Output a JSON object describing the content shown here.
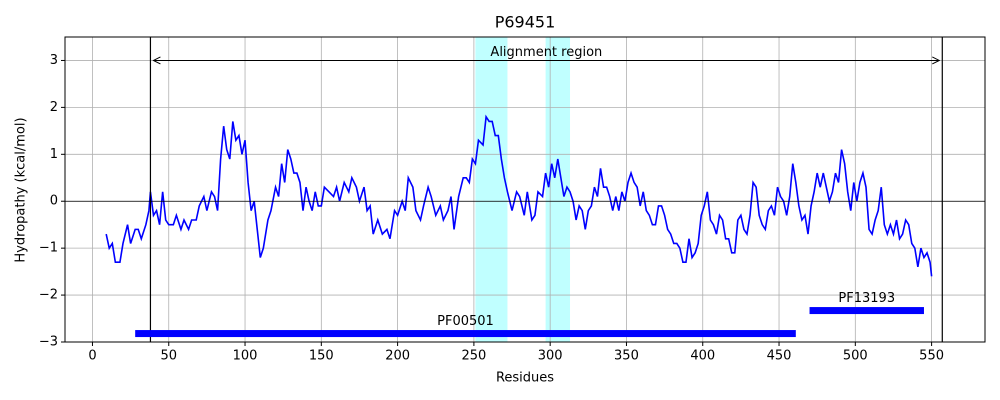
{
  "chart_data": {
    "type": "line",
    "title": "P69451",
    "xlabel": "Residues",
    "ylabel": "Hydropathy (kcal/mol)",
    "color": "#0000ff",
    "grid": true,
    "xlim": [
      -18,
      585
    ],
    "ylim": [
      -3,
      3.5
    ],
    "xticks": [
      0,
      50,
      100,
      150,
      200,
      250,
      300,
      350,
      400,
      450,
      500,
      550
    ],
    "yticks": [
      {
        "value": -3,
        "label": "−3"
      },
      {
        "value": -2,
        "label": "−2"
      },
      {
        "value": -1,
        "label": "−1"
      },
      0,
      1,
      2,
      3
    ],
    "hline": 0,
    "vlines": [
      38,
      557
    ],
    "regions": [
      {
        "start": 251,
        "end": 272,
        "color": "#c0ffff"
      },
      {
        "start": 297,
        "end": 313,
        "color": "#c0ffff"
      }
    ],
    "arrow": {
      "label": "Alignment region",
      "start": 38,
      "end": 557,
      "y": 3
    },
    "domains": [
      {
        "label": "PF00501",
        "start": 28,
        "end": 461,
        "y": -2.82,
        "color": "#0000ff"
      },
      {
        "label": "PF13193",
        "start": 470,
        "end": 545,
        "y": -2.33,
        "color": "#0000ff"
      }
    ],
    "x": [
      9,
      11,
      13,
      15,
      18,
      20,
      23,
      25,
      28,
      30,
      32,
      35,
      37,
      38,
      40,
      42,
      44,
      46,
      48,
      50,
      53,
      55,
      58,
      60,
      63,
      65,
      68,
      70,
      73,
      75,
      78,
      80,
      82,
      84,
      86,
      88,
      90,
      92,
      94,
      96,
      98,
      100,
      102,
      104,
      106,
      108,
      110,
      112,
      115,
      117,
      120,
      122,
      124,
      126,
      128,
      130,
      132,
      134,
      136,
      138,
      140,
      142,
      144,
      146,
      148,
      150,
      152,
      155,
      158,
      160,
      162,
      165,
      168,
      170,
      173,
      175,
      178,
      180,
      182,
      184,
      187,
      190,
      193,
      195,
      198,
      200,
      203,
      205,
      207,
      210,
      212,
      215,
      217,
      220,
      222,
      225,
      228,
      230,
      233,
      235,
      237,
      240,
      243,
      245,
      247,
      249,
      251,
      253,
      256,
      258,
      260,
      262,
      264,
      266,
      268,
      270,
      272,
      275,
      278,
      280,
      283,
      285,
      288,
      290,
      292,
      295,
      297,
      299,
      301,
      303,
      305,
      307,
      309,
      311,
      313,
      315,
      317,
      319,
      321,
      323,
      325,
      327,
      329,
      331,
      333,
      335,
      337,
      339,
      341,
      343,
      345,
      347,
      349,
      351,
      353,
      355,
      357,
      359,
      361,
      363,
      365,
      367,
      369,
      371,
      373,
      375,
      377,
      379,
      381,
      383,
      385,
      387,
      389,
      391,
      393,
      395,
      397,
      399,
      401,
      403,
      405,
      407,
      409,
      411,
      413,
      415,
      417,
      419,
      421,
      423,
      425,
      427,
      429,
      431,
      433,
      435,
      437,
      439,
      441,
      443,
      445,
      447,
      449,
      451,
      453,
      455,
      457,
      459,
      461,
      463,
      465,
      467,
      469,
      471,
      473,
      475,
      477,
      479,
      481,
      483,
      485,
      487,
      489,
      491,
      493,
      495,
      497,
      499,
      501,
      503,
      505,
      507,
      509,
      511,
      513,
      515,
      517,
      519,
      521,
      523,
      525,
      527,
      529,
      531,
      533,
      535,
      537,
      539,
      541,
      543,
      545,
      547,
      549,
      550
    ],
    "values": [
      -0.7,
      -1.0,
      -0.9,
      -1.3,
      -1.3,
      -0.9,
      -0.5,
      -0.9,
      -0.6,
      -0.6,
      -0.8,
      -0.5,
      -0.2,
      0.2,
      -0.3,
      -0.2,
      -0.5,
      0.2,
      -0.4,
      -0.5,
      -0.5,
      -0.3,
      -0.6,
      -0.4,
      -0.6,
      -0.4,
      -0.4,
      -0.1,
      0.1,
      -0.2,
      0.2,
      0.1,
      -0.2,
      0.9,
      1.6,
      1.1,
      0.9,
      1.7,
      1.3,
      1.4,
      1.0,
      1.3,
      0.4,
      -0.2,
      0.0,
      -0.6,
      -1.2,
      -1.0,
      -0.4,
      -0.2,
      0.3,
      0.1,
      0.8,
      0.4,
      1.1,
      0.9,
      0.6,
      0.6,
      0.4,
      -0.2,
      0.3,
      0.0,
      -0.2,
      0.2,
      -0.1,
      -0.1,
      0.3,
      0.2,
      0.1,
      0.3,
      0.0,
      0.4,
      0.2,
      0.5,
      0.3,
      0.0,
      0.3,
      -0.2,
      -0.1,
      -0.7,
      -0.4,
      -0.7,
      -0.6,
      -0.8,
      -0.2,
      -0.3,
      0.0,
      -0.2,
      0.5,
      0.3,
      -0.2,
      -0.4,
      -0.1,
      0.3,
      0.1,
      -0.3,
      -0.1,
      -0.4,
      -0.2,
      0.1,
      -0.6,
      0.1,
      0.5,
      0.5,
      0.4,
      0.9,
      0.8,
      1.3,
      1.2,
      1.8,
      1.7,
      1.7,
      1.4,
      1.4,
      0.9,
      0.5,
      0.2,
      -0.2,
      0.2,
      0.1,
      -0.3,
      0.2,
      -0.4,
      -0.3,
      0.2,
      0.1,
      0.6,
      0.3,
      0.8,
      0.5,
      0.9,
      0.5,
      0.1,
      0.3,
      0.2,
      0.0,
      -0.4,
      -0.1,
      -0.2,
      -0.6,
      -0.2,
      -0.1,
      0.3,
      0.1,
      0.7,
      0.3,
      0.3,
      0.1,
      -0.2,
      0.1,
      -0.2,
      0.2,
      0.0,
      0.4,
      0.6,
      0.4,
      0.3,
      -0.1,
      0.2,
      -0.2,
      -0.3,
      -0.5,
      -0.5,
      -0.1,
      -0.1,
      -0.3,
      -0.6,
      -0.7,
      -0.9,
      -0.9,
      -1.0,
      -1.3,
      -1.3,
      -0.8,
      -1.2,
      -1.1,
      -0.9,
      -0.3,
      -0.1,
      0.2,
      -0.4,
      -0.5,
      -0.7,
      -0.3,
      -0.4,
      -0.8,
      -0.8,
      -1.1,
      -1.1,
      -0.4,
      -0.3,
      -0.6,
      -0.7,
      -0.3,
      0.4,
      0.3,
      -0.3,
      -0.5,
      -0.6,
      -0.2,
      -0.1,
      -0.3,
      0.3,
      0.1,
      0.0,
      -0.3,
      0.1,
      0.8,
      0.4,
      -0.1,
      -0.4,
      -0.3,
      -0.7,
      -0.1,
      0.2,
      0.6,
      0.3,
      0.6,
      0.3,
      0.0,
      0.2,
      0.6,
      0.4,
      1.1,
      0.8,
      0.2,
      -0.2,
      0.4,
      0.0,
      0.4,
      0.6,
      0.3,
      -0.6,
      -0.7,
      -0.4,
      -0.2,
      0.3,
      -0.5,
      -0.7,
      -0.5,
      -0.7,
      -0.4,
      -0.8,
      -0.7,
      -0.4,
      -0.5,
      -0.9,
      -1.0,
      -1.4,
      -1.0,
      -1.2,
      -1.1,
      -1.3,
      -1.6
    ]
  }
}
